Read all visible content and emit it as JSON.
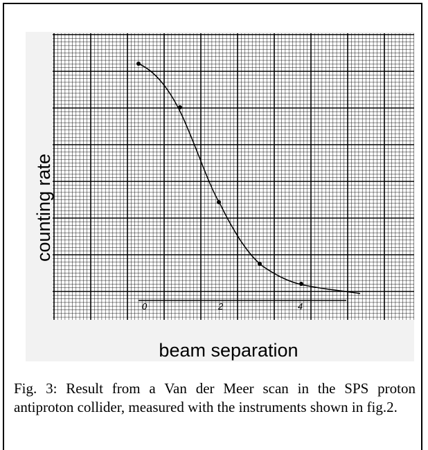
{
  "figure": {
    "y_axis_label": "counting rate",
    "x_axis_label": "beam separation",
    "x_tick_labels": [
      "0",
      "2",
      "4"
    ]
  },
  "caption": "Fig. 3: Result from a Van der Meer scan in the SPS proton antiproton collider, measured with the instruments shown in fig.2."
}
